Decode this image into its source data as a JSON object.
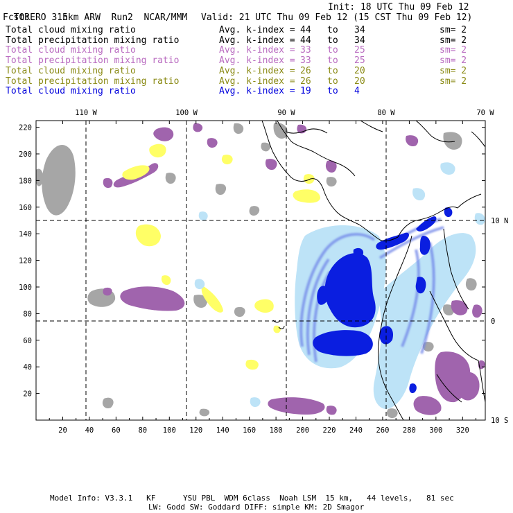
{
  "header": {
    "model": "TORERO",
    "resolution": "15km ARW",
    "run": "Run2",
    "org": "NCAR/MMM",
    "init": "Init: 18 UTC Thu 09 Feb 12",
    "fcst_label": "Fcst:",
    "fcst_value": "3 h",
    "valid": "Valid: 21 UTC Thu 09 Feb 12 (15 CST Thu 09 Feb 12)"
  },
  "legend": [
    {
      "field": "Total cloud mixing ratio",
      "index": "Avg. k-index =",
      "from": "44",
      "to_label": "to",
      "to": "34",
      "sm": "sm= 2",
      "color": "#000000"
    },
    {
      "field": "Total precipitation mixing ratio",
      "index": "Avg. k-index =",
      "from": "44",
      "to_label": "to",
      "to": "34",
      "sm": "sm= 2",
      "color": "#000000"
    },
    {
      "field": "Total cloud mixing ratio",
      "index": "Avg. k-index =",
      "from": "33",
      "to_label": "to",
      "to": "25",
      "sm": "sm= 2",
      "color": "#b96bc0"
    },
    {
      "field": "Total precipitation mixing ratio",
      "index": "Avg. k-index =",
      "from": "33",
      "to_label": "to",
      "to": "25",
      "sm": "sm= 2",
      "color": "#b96bc0"
    },
    {
      "field": "Total cloud mixing ratio",
      "index": "Avg. k-index =",
      "from": "26",
      "to_label": "to",
      "to": "20",
      "sm": "sm= 2",
      "color": "#8a8a14"
    },
    {
      "field": "Total precipitation mixing ratio",
      "index": "Avg. k-index =",
      "from": "26",
      "to_label": "to",
      "to": "20",
      "sm": "sm= 2",
      "color": "#8a8a14"
    },
    {
      "field": "Total cloud mixing ratio",
      "index": "Avg. k-index =",
      "from": "19",
      "to_label": "to",
      "to": "4",
      "sm": "",
      "color": "#0000dd"
    }
  ],
  "axes": {
    "top_longitudes": [
      "110 W",
      "100 W",
      "90 W",
      "80 W",
      "70 W"
    ],
    "right_latitudes": [
      "10 N",
      "0",
      "10 S"
    ],
    "y_ticks": [
      "20",
      "40",
      "60",
      "80",
      "100",
      "120",
      "140",
      "160",
      "180",
      "200",
      "220"
    ],
    "x_ticks": [
      "20",
      "40",
      "60",
      "80",
      "100",
      "120",
      "140",
      "160",
      "180",
      "200",
      "220",
      "240",
      "260",
      "280",
      "300",
      "320"
    ]
  },
  "footer": {
    "line1": "Model Info: V3.3.1   KF      YSU PBL  WDM 6class  Noah LSM  15 km,   44 levels,   81 sec",
    "line2": "LW: Godd SW: Goddard DIFF: simple KM: 2D Smagor"
  },
  "colors": {
    "gray": "#a6a6a6",
    "purple": "#a064ad",
    "yellow": "#ffff66",
    "light_blue": "#bde3f7",
    "mid_blue": "#6f84e8",
    "dark_blue": "#0a1ee0"
  }
}
